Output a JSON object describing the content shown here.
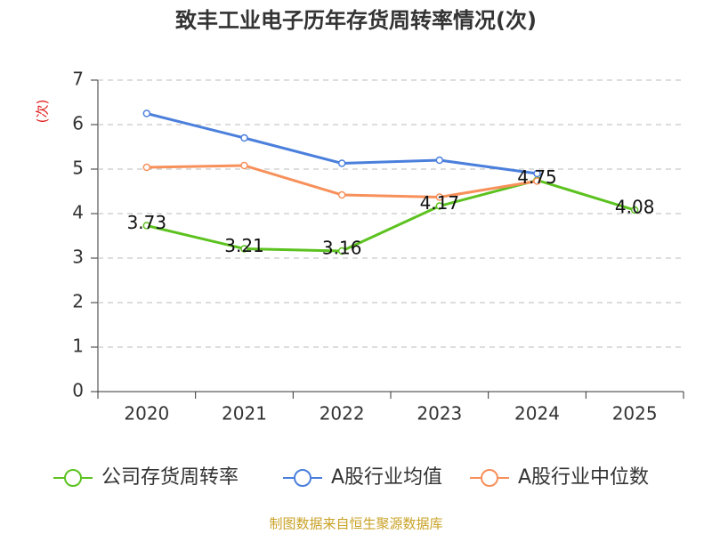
{
  "chart_data": {
    "type": "line",
    "title": "致丰工业电子历年存货周转率情况(次)",
    "y_label": "(次)",
    "source": "制图数据来自恒生聚源数据库",
    "categories": [
      "2020",
      "2021",
      "2022",
      "2023",
      "2024",
      "2025"
    ],
    "series": [
      {
        "name": "公司存货周转率",
        "color": "#5cc21f",
        "values": [
          3.73,
          3.21,
          3.16,
          4.17,
          4.75,
          4.08
        ],
        "show_labels": true
      },
      {
        "name": "A股行业均值",
        "color": "#4a7fdc",
        "values": [
          6.25,
          5.7,
          5.13,
          5.2,
          4.9,
          null
        ]
      },
      {
        "name": "A股行业中位数",
        "color": "#f7905a",
        "values": [
          5.04,
          5.08,
          4.42,
          4.37,
          4.73,
          null
        ]
      }
    ],
    "ylim": [
      0,
      7
    ],
    "yticks": [
      0,
      1,
      2,
      3,
      4,
      5,
      6,
      7
    ],
    "grid": true
  }
}
